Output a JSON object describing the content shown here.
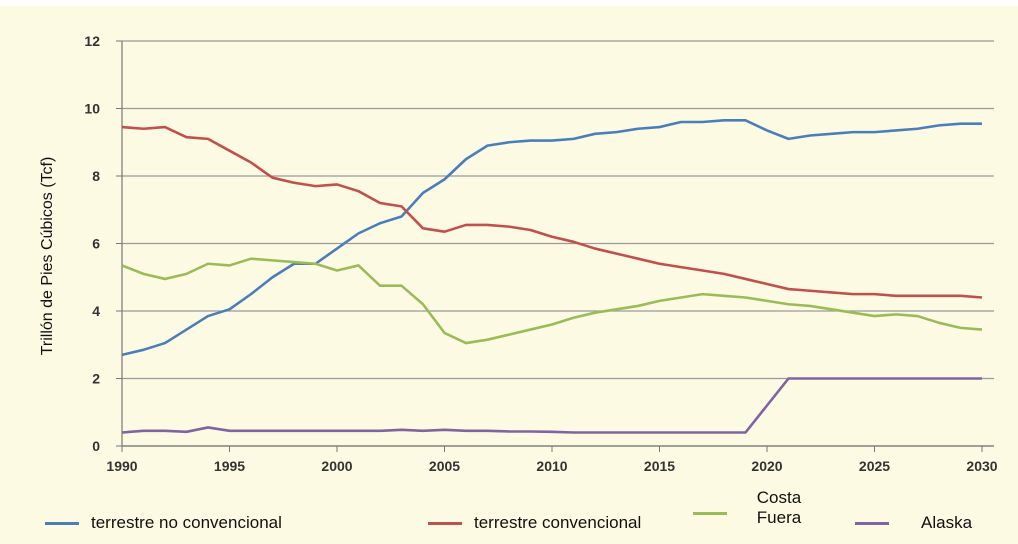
{
  "chart_data": {
    "type": "line",
    "y_label": "Trillón de Pies Cúbicos (Tcf)",
    "x": [
      1990,
      1991,
      1992,
      1993,
      1994,
      1995,
      1996,
      1997,
      1998,
      1999,
      2000,
      2001,
      2002,
      2003,
      2004,
      2005,
      2006,
      2007,
      2008,
      2009,
      2010,
      2011,
      2012,
      2013,
      2014,
      2015,
      2016,
      2017,
      2018,
      2019,
      2020,
      2021,
      2022,
      2023,
      2024,
      2025,
      2026,
      2027,
      2028,
      2029,
      2030
    ],
    "xlim": [
      1990,
      2030
    ],
    "xticks": [
      1990,
      1995,
      2000,
      2005,
      2010,
      2015,
      2020,
      2025,
      2030
    ],
    "ylim": [
      0,
      12
    ],
    "yticks": [
      0,
      2,
      4,
      6,
      8,
      10,
      12
    ],
    "grid": true,
    "series": [
      {
        "name": "terrestre no convencional",
        "color": "#4a7ebb",
        "values": [
          2.7,
          2.85,
          3.05,
          3.45,
          3.85,
          4.05,
          4.5,
          5.0,
          5.4,
          5.4,
          5.85,
          6.3,
          6.6,
          6.8,
          7.5,
          7.9,
          8.5,
          8.9,
          9.0,
          9.05,
          9.05,
          9.1,
          9.25,
          9.3,
          9.4,
          9.45,
          9.6,
          9.6,
          9.65,
          9.65,
          9.35,
          9.1,
          9.2,
          9.25,
          9.3,
          9.3,
          9.35,
          9.4,
          9.5,
          9.55,
          9.55
        ]
      },
      {
        "name": "terrestre convencional",
        "color": "#c0504d",
        "values": [
          9.45,
          9.4,
          9.45,
          9.15,
          9.1,
          8.75,
          8.4,
          7.95,
          7.8,
          7.7,
          7.75,
          7.55,
          7.2,
          7.1,
          6.45,
          6.35,
          6.55,
          6.55,
          6.5,
          6.4,
          6.2,
          6.05,
          5.85,
          5.7,
          5.55,
          5.4,
          5.3,
          5.2,
          5.1,
          4.95,
          4.8,
          4.65,
          4.6,
          4.55,
          4.5,
          4.5,
          4.45,
          4.45,
          4.45,
          4.45,
          4.4
        ]
      },
      {
        "name": "Costa Fuera",
        "color": "#9bbb59",
        "values": [
          5.35,
          5.1,
          4.95,
          5.1,
          5.4,
          5.35,
          5.55,
          5.5,
          5.45,
          5.4,
          5.2,
          5.35,
          4.75,
          4.75,
          4.2,
          3.35,
          3.05,
          3.15,
          3.3,
          3.45,
          3.6,
          3.8,
          3.95,
          4.05,
          4.15,
          4.3,
          4.4,
          4.5,
          4.45,
          4.4,
          4.3,
          4.2,
          4.15,
          4.05,
          3.95,
          3.85,
          3.9,
          3.85,
          3.65,
          3.5,
          3.45
        ]
      },
      {
        "name": "Alaska",
        "color": "#8064a2",
        "values": [
          0.4,
          0.45,
          0.45,
          0.42,
          0.55,
          0.45,
          0.45,
          0.45,
          0.45,
          0.45,
          0.45,
          0.45,
          0.45,
          0.48,
          0.45,
          0.48,
          0.45,
          0.45,
          0.43,
          0.43,
          0.42,
          0.4,
          0.4,
          0.4,
          0.4,
          0.4,
          0.4,
          0.4,
          0.4,
          0.4,
          1.2,
          2.0,
          2.0,
          2.0,
          2.0,
          2.0,
          2.0,
          2.0,
          2.0,
          2.0,
          2.0
        ]
      }
    ]
  }
}
